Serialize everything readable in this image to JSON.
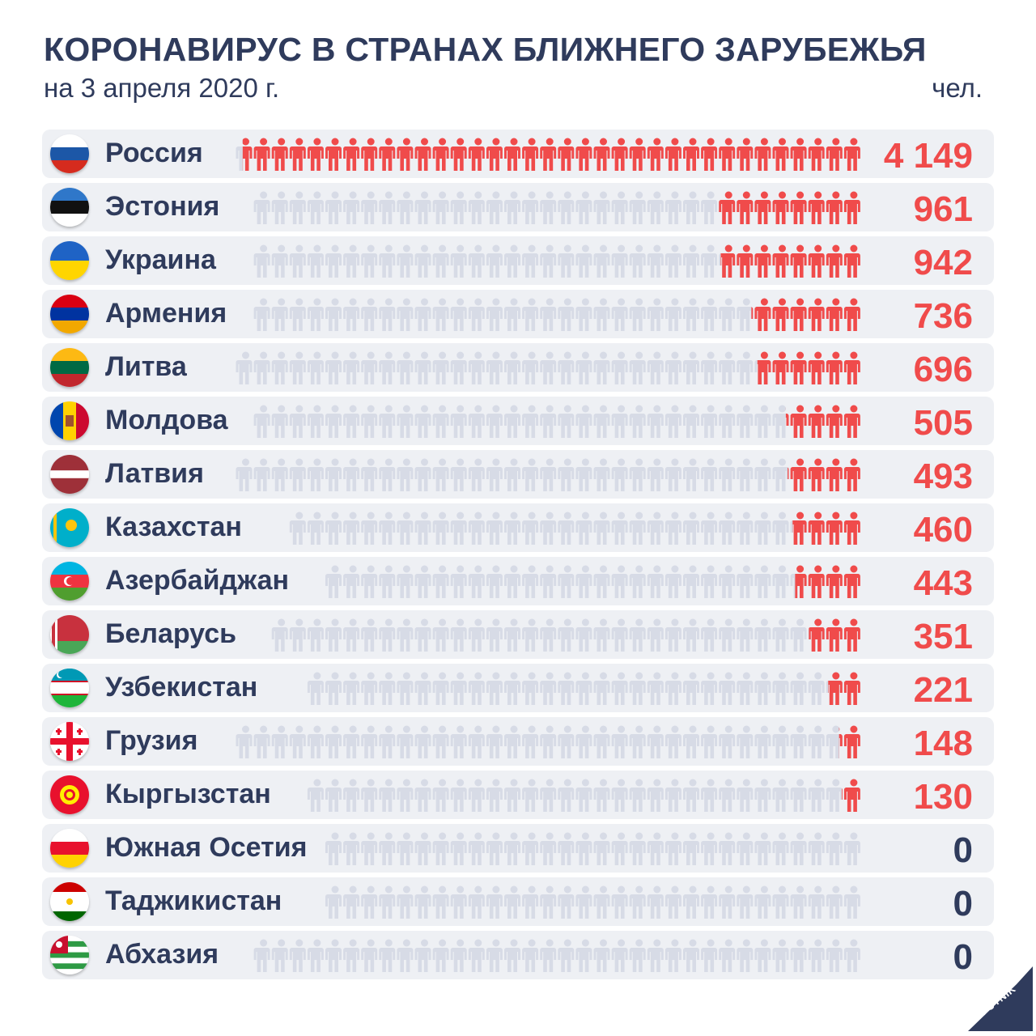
{
  "title": "КОРОНАВИРУС В СТРАНАХ БЛИЖНЕГО ЗАРУБЕЖЬЯ",
  "subtitle": "на 3 апреля 2020 г.",
  "unit": "чел.",
  "logo_text": "SPUTNIK",
  "colors": {
    "accent": "#f04b4b",
    "inactive_icon": "#d7dbe6",
    "row_bg": "#eef0f4",
    "text": "#2f3b5c"
  },
  "chart_data": {
    "type": "bar",
    "categories": [
      "Россия",
      "Эстония",
      "Украина",
      "Армения",
      "Литва",
      "Молдова",
      "Латвия",
      "Казахстан",
      "Азербайджан",
      "Беларусь",
      "Узбекистан",
      "Грузия",
      "Кыргызстан",
      "Южная Осетия",
      "Таджикистан",
      "Абхазия"
    ],
    "values": [
      4149,
      961,
      942,
      736,
      696,
      505,
      493,
      460,
      443,
      351,
      221,
      148,
      130,
      0,
      0,
      0
    ],
    "value_labels": [
      "4 149",
      "961",
      "942",
      "736",
      "696",
      "505",
      "493",
      "460",
      "443",
      "351",
      "221",
      "148",
      "130",
      "0",
      "0",
      "0"
    ],
    "flag_icons": [
      "flag-russia-icon",
      "flag-estonia-icon",
      "flag-ukraine-icon",
      "flag-armenia-icon",
      "flag-lithuania-icon",
      "flag-moldova-icon",
      "flag-latvia-icon",
      "flag-kazakhstan-icon",
      "flag-azerbaijan-icon",
      "flag-belarus-icon",
      "flag-uzbekistan-icon",
      "flag-georgia-icon",
      "flag-kyrgyzstan-icon",
      "flag-south-ossetia-icon",
      "flag-tajikistan-icon",
      "flag-abkhazia-icon"
    ],
    "encoding": "pictogram",
    "title": "КОРОНАВИРУС В СТРАНАХ БЛИЖНЕГО ЗАРУБЕЖЬЯ",
    "xlabel": "",
    "ylabel": "чел."
  }
}
